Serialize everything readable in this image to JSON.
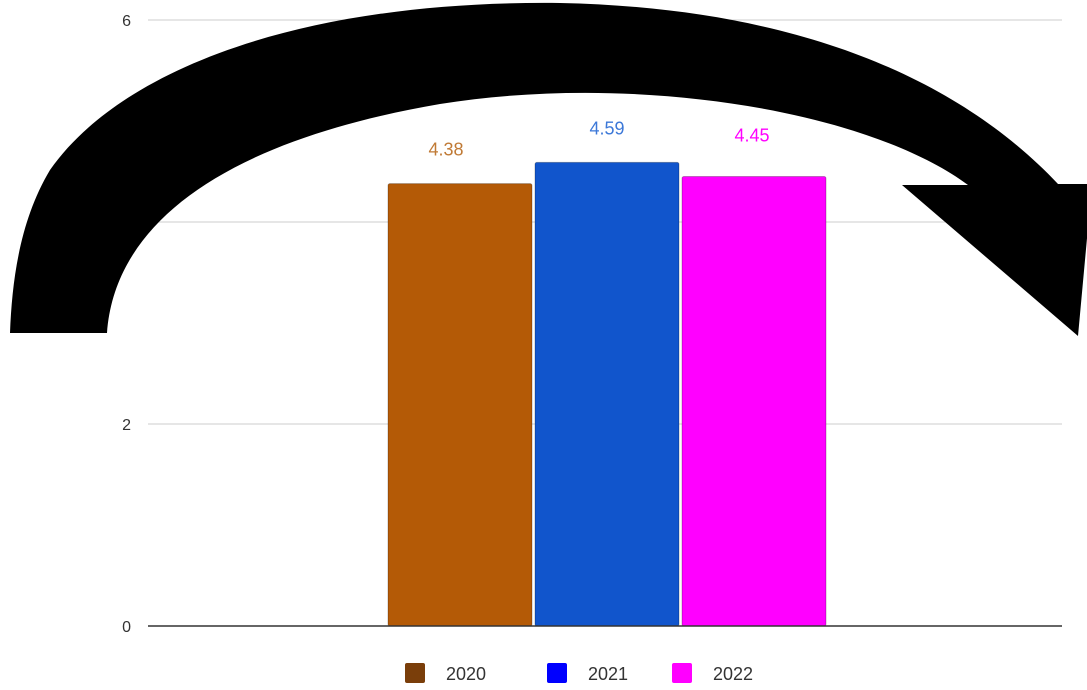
{
  "chart_data": {
    "type": "bar",
    "title": "",
    "xlabel": "",
    "ylabel": "",
    "ylim": [
      0,
      6
    ],
    "y_ticks": [
      {
        "value": 0,
        "label": "0"
      },
      {
        "value": 2,
        "label": "2"
      },
      {
        "value": 6,
        "label": "6"
      }
    ],
    "gridlines": [
      2,
      4,
      6
    ],
    "grid": true,
    "legend_position": "bottom",
    "series": [
      {
        "name": "2020",
        "value": 4.38,
        "label": "4.38",
        "color": "#b45a06",
        "label_color": "#c07a35",
        "legend_color": "#7a3e0a"
      },
      {
        "name": "2021",
        "value": 4.59,
        "label": "4.59",
        "color": "#1155cc",
        "label_color": "#3c78d8",
        "legend_color": "#0000ff"
      },
      {
        "name": "2022",
        "value": 4.45,
        "label": "4.45",
        "color": "#ff00ff",
        "label_color": "#ff00ff",
        "legend_color": "#ff00ff"
      }
    ],
    "annotation": {
      "type": "curved-arrow",
      "color": "#000000"
    }
  }
}
